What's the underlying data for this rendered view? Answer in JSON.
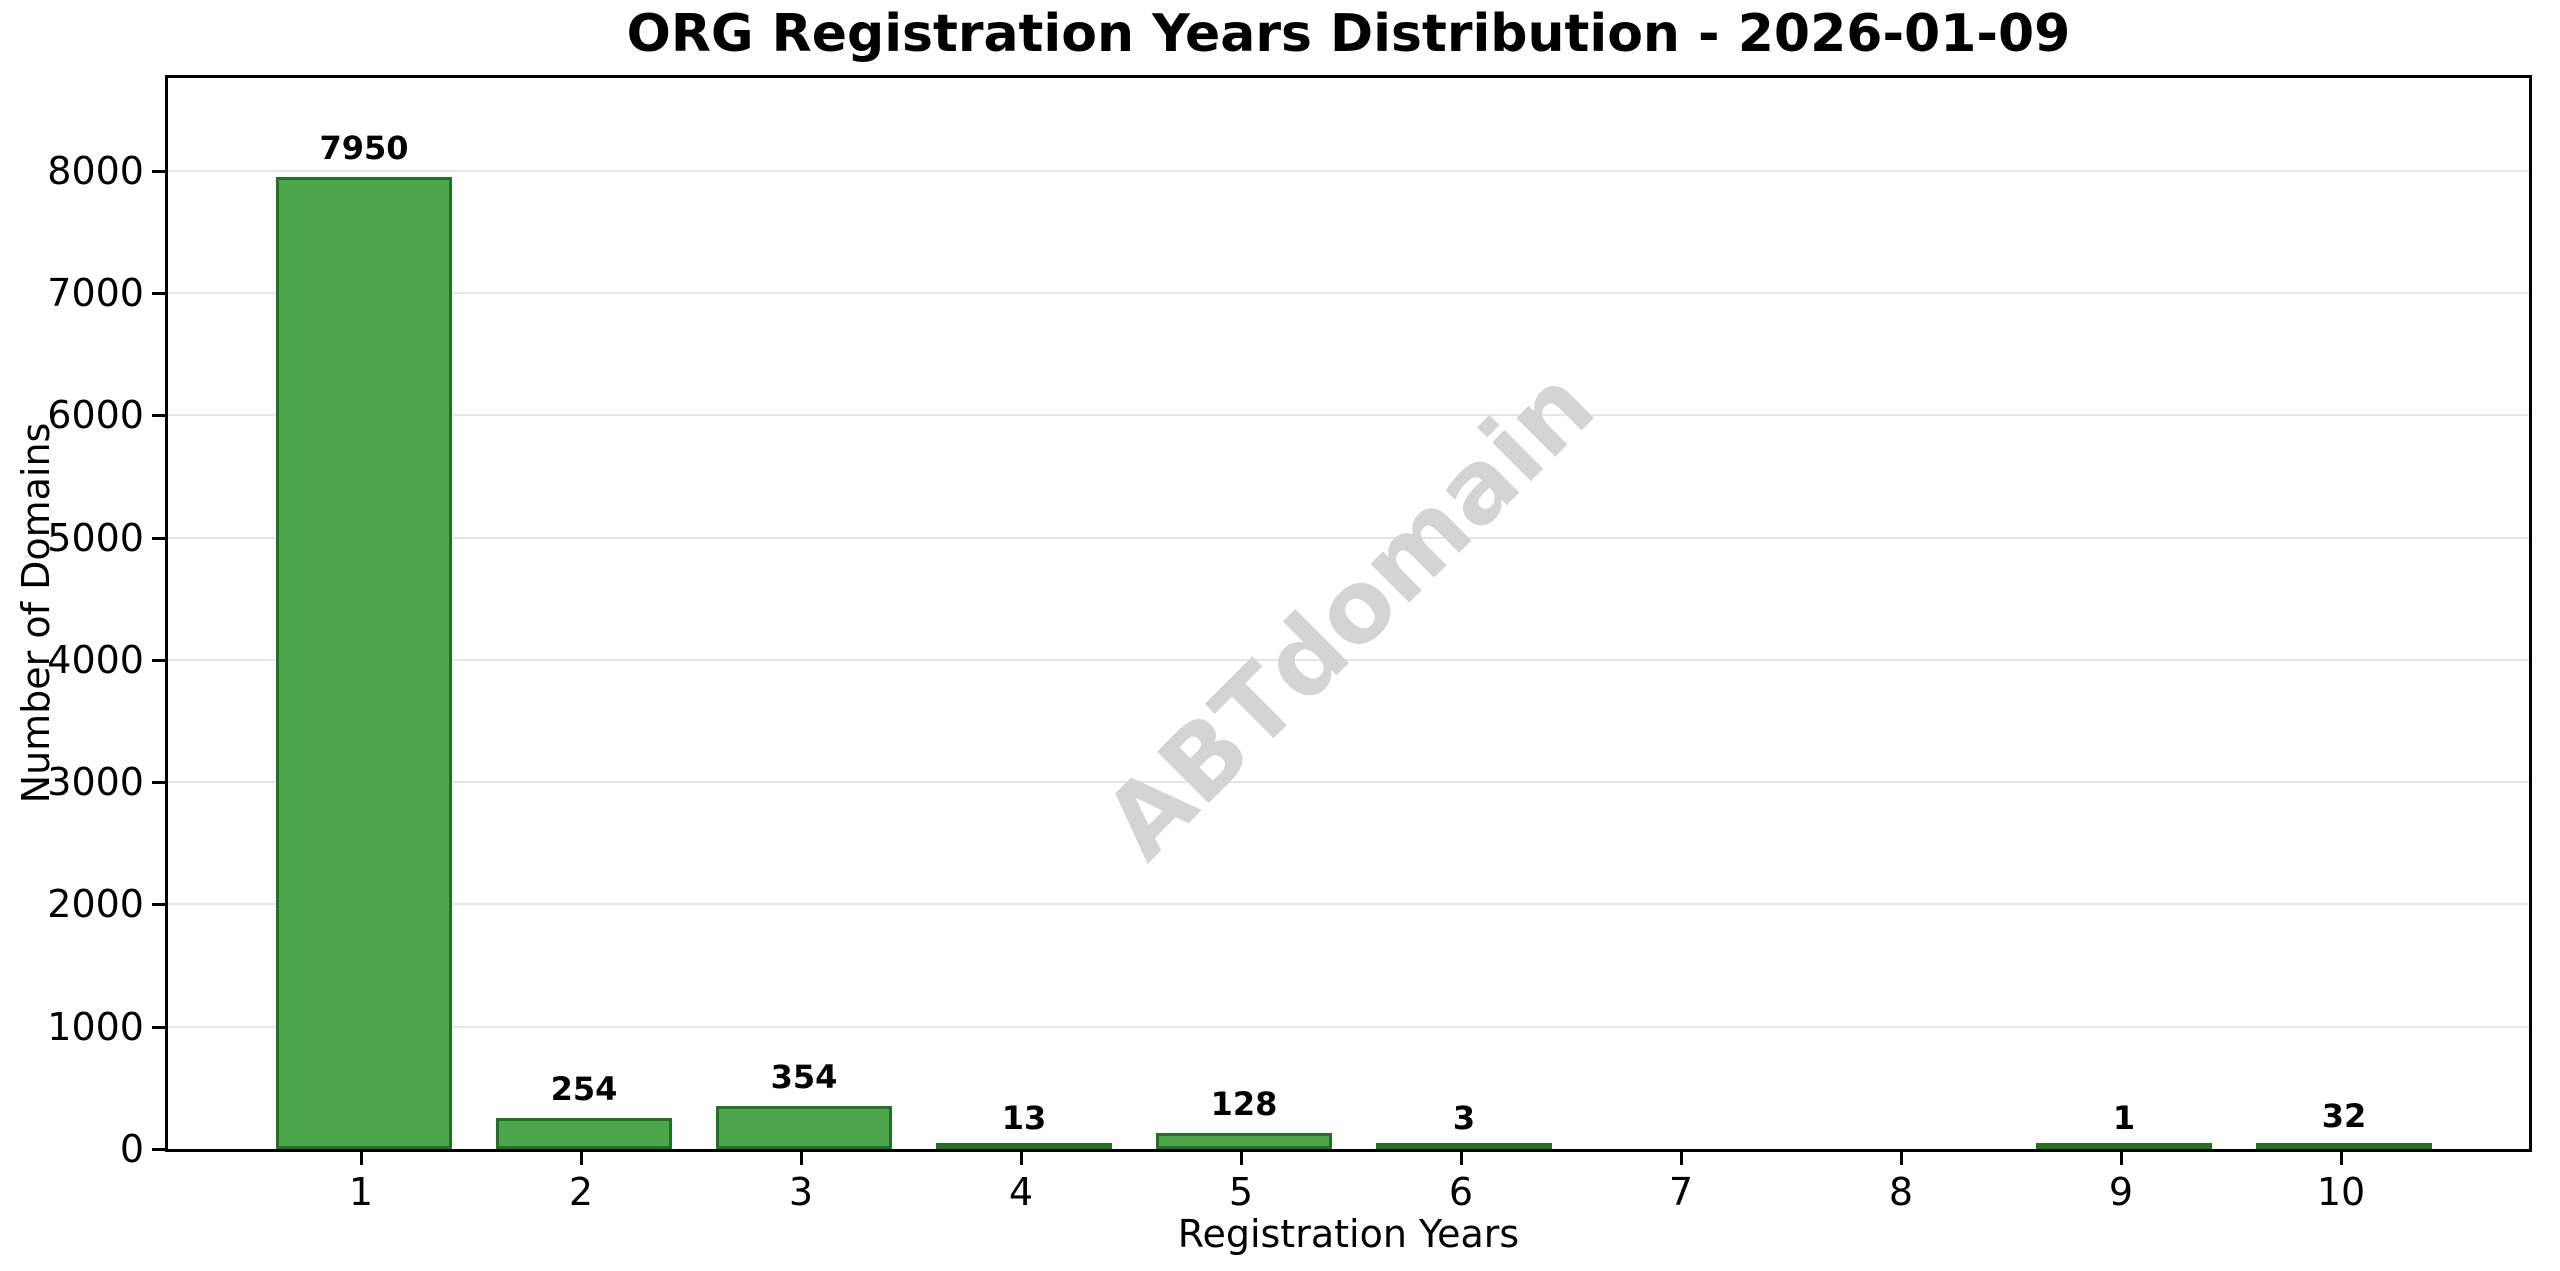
{
  "chart_data": {
    "type": "bar",
    "title": "ORG Registration Years Distribution - 2026-01-09",
    "xlabel": "Registration Years",
    "ylabel": "Number of Domains",
    "categories": [
      "1",
      "2",
      "3",
      "4",
      "5",
      "6",
      "7",
      "8",
      "9",
      "10"
    ],
    "values": [
      7950,
      254,
      354,
      13,
      128,
      3,
      0,
      0,
      1,
      32
    ],
    "bar_labels": [
      "7950",
      "254",
      "354",
      "13",
      "128",
      "3",
      "",
      "",
      "1",
      "32"
    ],
    "yticks": [
      0,
      1000,
      2000,
      3000,
      4000,
      5000,
      6000,
      7000,
      8000
    ],
    "ylim": [
      0,
      8760
    ],
    "grid": "horizontal-only",
    "legend_position": "none",
    "watermark": "ABTdomain",
    "colors": {
      "bar_fill": "#4CA64C",
      "bar_edge": "#247024",
      "grid": "#e6e6e6",
      "watermark": "#d4d4d4",
      "text": "#000000",
      "background": "#ffffff"
    }
  }
}
